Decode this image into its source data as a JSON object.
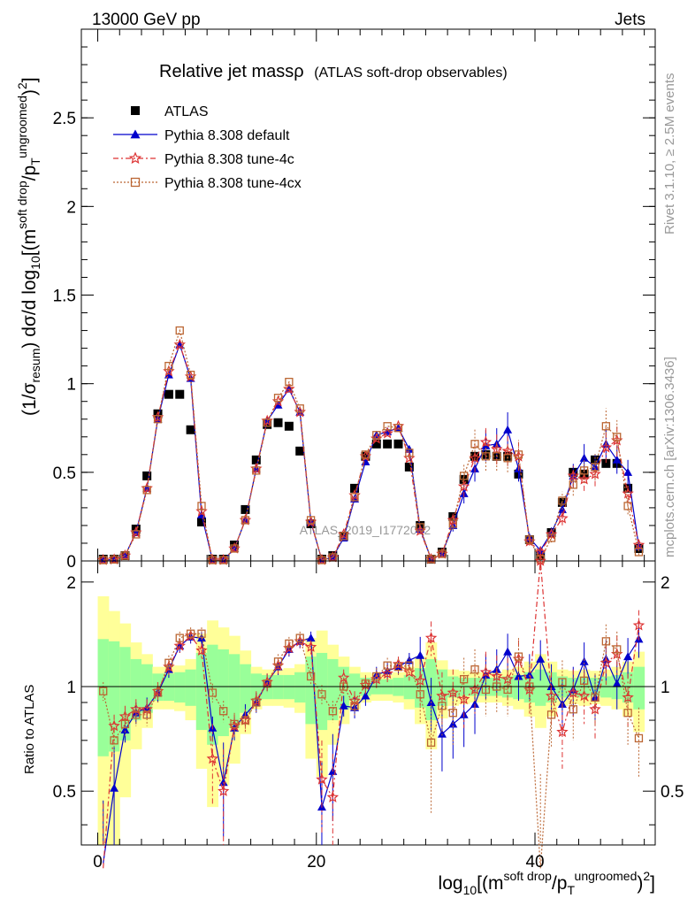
{
  "header": {
    "left": "13000 GeV pp",
    "right": "Jets"
  },
  "side_text": {
    "rivet": "Rivet 3.1.10, ≥ 2.5M events",
    "mcplots": "mcplots.cern.ch [arXiv:1306.3436]"
  },
  "watermark": "ATLAS_2019_I1772062",
  "title": {
    "main": "Relative jet massρ",
    "sub": "(ATLAS soft-drop observables)"
  },
  "y_axis_label": {
    "pre": "(1/σ",
    "sub1": "resum",
    "mid": ") dσ/d log",
    "sub2": "10",
    "bracket": "[(m",
    "sup1": "soft drop",
    "slash": "/p",
    "sub3": "T",
    "sup2": "ungroomed",
    "end": ")",
    "sup3": "2",
    "close": "]"
  },
  "x_axis_label": {
    "pre": "log",
    "sub": "10",
    "bracket": "[(m",
    "sup1": "soft drop",
    "slash": "/p",
    "sub2": "T",
    "sup2": "ungroomed",
    "end": ")",
    "sup3": "2",
    "close": "]"
  },
  "ratio_label": "Ratio to ATLAS",
  "colors": {
    "atlas": "#000000",
    "default": "#0000cc",
    "tune4c": "#dd3333",
    "tune4cx": "#bb6633",
    "band_green": "#99ff99",
    "band_yellow": "#ffff99"
  },
  "chart_data": [
    {
      "type": "scatter",
      "panel": "main",
      "xlim": [
        -1.5,
        51
      ],
      "ylim": [
        0,
        3.0
      ],
      "xticks": [
        0,
        20,
        40
      ],
      "yticks": [
        0,
        0.5,
        1,
        1.5,
        2,
        2.5
      ],
      "ytick_labels": [
        "0",
        "0.5",
        "1",
        "1.5",
        "2",
        "2.5"
      ],
      "legend_position": "top-left",
      "x": [
        0.5,
        1.5,
        2.5,
        3.5,
        4.5,
        5.5,
        6.5,
        7.5,
        8.5,
        9.5,
        10.5,
        11.5,
        12.5,
        13.5,
        14.5,
        15.5,
        16.5,
        17.5,
        18.5,
        19.5,
        20.5,
        21.5,
        22.5,
        23.5,
        24.5,
        25.5,
        26.5,
        27.5,
        28.5,
        29.5,
        30.5,
        31.5,
        32.5,
        33.5,
        34.5,
        35.5,
        36.5,
        37.5,
        38.5,
        39.5,
        40.5,
        41.5,
        42.5,
        43.5,
        44.5,
        45.5,
        46.5,
        47.5,
        48.5,
        49.5
      ],
      "series": [
        {
          "name": "ATLAS",
          "marker": "square",
          "values": [
            0.01,
            0.01,
            0.03,
            0.18,
            0.48,
            0.83,
            0.94,
            0.94,
            0.74,
            0.22,
            0.01,
            0.01,
            0.09,
            0.29,
            0.57,
            0.77,
            0.78,
            0.76,
            0.62,
            0.21,
            0.01,
            0.03,
            0.14,
            0.41,
            0.59,
            0.66,
            0.66,
            0.66,
            0.53,
            0.2,
            0.01,
            0.05,
            0.25,
            0.46,
            0.59,
            0.6,
            0.59,
            0.59,
            0.49,
            0.12,
            0.03,
            0.16,
            0.33,
            0.5,
            0.49,
            0.57,
            0.55,
            0.55,
            0.41,
            0.07
          ]
        },
        {
          "name": "Pythia 8.308 default",
          "marker": "triangle",
          "values": [
            0.005,
            0.008,
            0.03,
            0.16,
            0.41,
            0.8,
            1.05,
            1.22,
            1.03,
            0.26,
            0.005,
            0.005,
            0.07,
            0.23,
            0.52,
            0.79,
            0.88,
            0.97,
            0.84,
            0.22,
            0.005,
            0.02,
            0.13,
            0.35,
            0.56,
            0.71,
            0.73,
            0.75,
            0.63,
            0.18,
            0.01,
            0.04,
            0.2,
            0.38,
            0.52,
            0.65,
            0.66,
            0.74,
            0.52,
            0.13,
            0.06,
            0.16,
            0.29,
            0.48,
            0.58,
            0.53,
            0.66,
            0.57,
            0.5,
            0.08
          ]
        },
        {
          "name": "Pythia 8.308 tune-4c",
          "marker": "star",
          "values": [
            0.005,
            0.008,
            0.03,
            0.16,
            0.41,
            0.81,
            1.07,
            1.22,
            1.04,
            0.28,
            0.005,
            0.005,
            0.07,
            0.23,
            0.52,
            0.79,
            0.9,
            0.97,
            0.84,
            0.22,
            0.005,
            0.02,
            0.15,
            0.37,
            0.59,
            0.69,
            0.72,
            0.76,
            0.58,
            0.17,
            0.01,
            0.04,
            0.23,
            0.42,
            0.58,
            0.67,
            0.63,
            0.62,
            0.59,
            0.11,
            0.05,
            0.15,
            0.24,
            0.48,
            0.46,
            0.49,
            0.64,
            0.68,
            0.38,
            0.09
          ]
        },
        {
          "name": "Pythia 8.308 tune-4cx",
          "marker": "open-square",
          "values": [
            0.005,
            0.008,
            0.03,
            0.15,
            0.4,
            0.8,
            1.1,
            1.3,
            1.05,
            0.31,
            0.005,
            0.005,
            0.07,
            0.23,
            0.51,
            0.78,
            0.92,
            1.01,
            0.86,
            0.23,
            0.005,
            0.02,
            0.14,
            0.36,
            0.6,
            0.71,
            0.76,
            0.75,
            0.61,
            0.19,
            0.01,
            0.04,
            0.21,
            0.48,
            0.66,
            0.59,
            0.59,
            0.58,
            0.6,
            0.12,
            0.01,
            0.13,
            0.34,
            0.43,
            0.51,
            0.53,
            0.76,
            0.7,
            0.31,
            0.05
          ]
        }
      ]
    },
    {
      "type": "scatter",
      "panel": "ratio",
      "ylabel": "Ratio to ATLAS",
      "xlim": [
        -1.5,
        51
      ],
      "ylim": [
        0.35,
        2.3
      ],
      "yticks": [
        0.5,
        1,
        2
      ],
      "ytick_labels": [
        "0.5",
        "1",
        "2"
      ],
      "x": [
        0.5,
        1.5,
        2.5,
        3.5,
        4.5,
        5.5,
        6.5,
        7.5,
        8.5,
        9.5,
        10.5,
        11.5,
        12.5,
        13.5,
        14.5,
        15.5,
        16.5,
        17.5,
        18.5,
        19.5,
        20.5,
        21.5,
        22.5,
        23.5,
        24.5,
        25.5,
        26.5,
        27.5,
        28.5,
        29.5,
        30.5,
        31.5,
        32.5,
        33.5,
        34.5,
        35.5,
        36.5,
        37.5,
        38.5,
        39.5,
        40.5,
        41.5,
        42.5,
        43.5,
        44.5,
        45.5,
        46.5,
        47.5,
        48.5,
        49.5
      ],
      "band_green_half": [
        0.37,
        0.35,
        0.3,
        0.2,
        0.16,
        0.09,
        0.09,
        0.1,
        0.12,
        0.25,
        0.32,
        0.28,
        0.24,
        0.16,
        0.09,
        0.08,
        0.08,
        0.08,
        0.1,
        0.22,
        0.25,
        0.2,
        0.14,
        0.09,
        0.06,
        0.05,
        0.05,
        0.06,
        0.08,
        0.13,
        0.2,
        0.12,
        0.07,
        0.06,
        0.06,
        0.06,
        0.06,
        0.07,
        0.08,
        0.1,
        0.12,
        0.1,
        0.07,
        0.06,
        0.07,
        0.06,
        0.07,
        0.08,
        0.1,
        0.14
      ],
      "band_yellow_half": [
        0.82,
        0.65,
        0.52,
        0.34,
        0.24,
        0.14,
        0.14,
        0.15,
        0.2,
        0.42,
        0.55,
        0.48,
        0.4,
        0.27,
        0.14,
        0.12,
        0.12,
        0.13,
        0.16,
        0.38,
        0.45,
        0.32,
        0.22,
        0.14,
        0.1,
        0.09,
        0.09,
        0.1,
        0.14,
        0.22,
        0.34,
        0.19,
        0.12,
        0.11,
        0.1,
        0.1,
        0.1,
        0.12,
        0.14,
        0.18,
        0.24,
        0.18,
        0.12,
        0.11,
        0.12,
        0.11,
        0.12,
        0.14,
        0.18,
        0.26
      ],
      "series": [
        {
          "name": "Pythia 8.308 default",
          "marker": "triangle",
          "values": [
            0.31,
            0.51,
            0.75,
            0.84,
            0.87,
            0.96,
            1.12,
            1.31,
            1.39,
            1.38,
            0.76,
            0.53,
            0.76,
            0.83,
            0.9,
            1.03,
            1.14,
            1.28,
            1.35,
            1.38,
            0.45,
            0.57,
            0.88,
            0.87,
            0.94,
            1.08,
            1.11,
            1.14,
            1.19,
            1.23,
            0.9,
            0.73,
            0.78,
            0.83,
            0.89,
            1.08,
            1.12,
            1.26,
            1.07,
            1.08,
            1.2,
            1.0,
            0.89,
            0.98,
            1.18,
            0.93,
            1.2,
            1.02,
            1.22,
            1.37
          ]
        },
        {
          "name": "Pythia 8.308 tune-4c",
          "marker": "star",
          "values": [
            0.3,
            0.77,
            0.82,
            0.86,
            0.86,
            0.97,
            1.14,
            1.31,
            1.4,
            1.27,
            0.62,
            0.5,
            0.77,
            0.8,
            0.91,
            1.03,
            1.15,
            1.29,
            1.35,
            1.3,
            0.54,
            0.48,
            1.06,
            0.91,
            1.01,
            1.05,
            1.09,
            1.16,
            1.1,
            1.04,
            1.38,
            0.94,
            0.96,
            0.92,
            0.98,
            1.1,
            1.07,
            1.05,
            1.2,
            0.98,
            2.3,
            0.94,
            0.74,
            0.96,
            0.94,
            0.86,
            1.17,
            1.24,
            0.93,
            1.5
          ]
        },
        {
          "name": "Pythia 8.308 tune-4cx",
          "marker": "open-square",
          "values": [
            0.97,
            0.7,
            0.78,
            0.83,
            0.83,
            0.96,
            1.17,
            1.38,
            1.42,
            1.42,
            0.96,
            0.85,
            0.78,
            0.8,
            0.9,
            1.02,
            1.18,
            1.33,
            1.38,
            1.07,
            0.95,
            0.85,
            1.0,
            0.88,
            1.02,
            1.07,
            1.15,
            1.14,
            1.15,
            0.95,
            0.69,
            0.88,
            0.84,
            1.05,
            1.12,
            0.98,
            1.0,
            0.98,
            1.22,
            1.0,
            0.3,
            0.83,
            1.03,
            0.86,
            1.04,
            0.93,
            1.35,
            1.28,
            0.84,
            0.71
          ]
        }
      ]
    }
  ]
}
